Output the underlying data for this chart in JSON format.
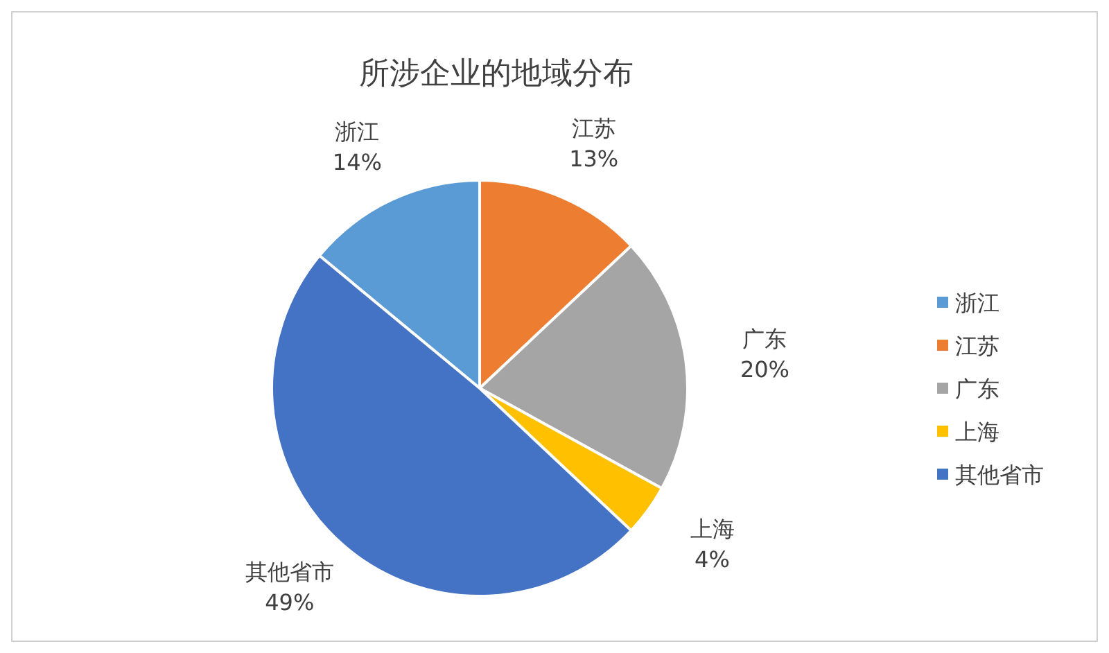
{
  "chart_data": {
    "type": "pie",
    "title": "所涉企业的地域分布",
    "categories": [
      "浙江",
      "江苏",
      "广东",
      "上海",
      "其他省市"
    ],
    "values": [
      14,
      13,
      20,
      4,
      49
    ],
    "colors": [
      "#5b9bd5",
      "#ed7d31",
      "#a5a5a5",
      "#ffc000",
      "#4472c4"
    ],
    "value_labels": [
      "14%",
      "13%",
      "20%",
      "4%",
      "49%"
    ],
    "legend": "right"
  }
}
